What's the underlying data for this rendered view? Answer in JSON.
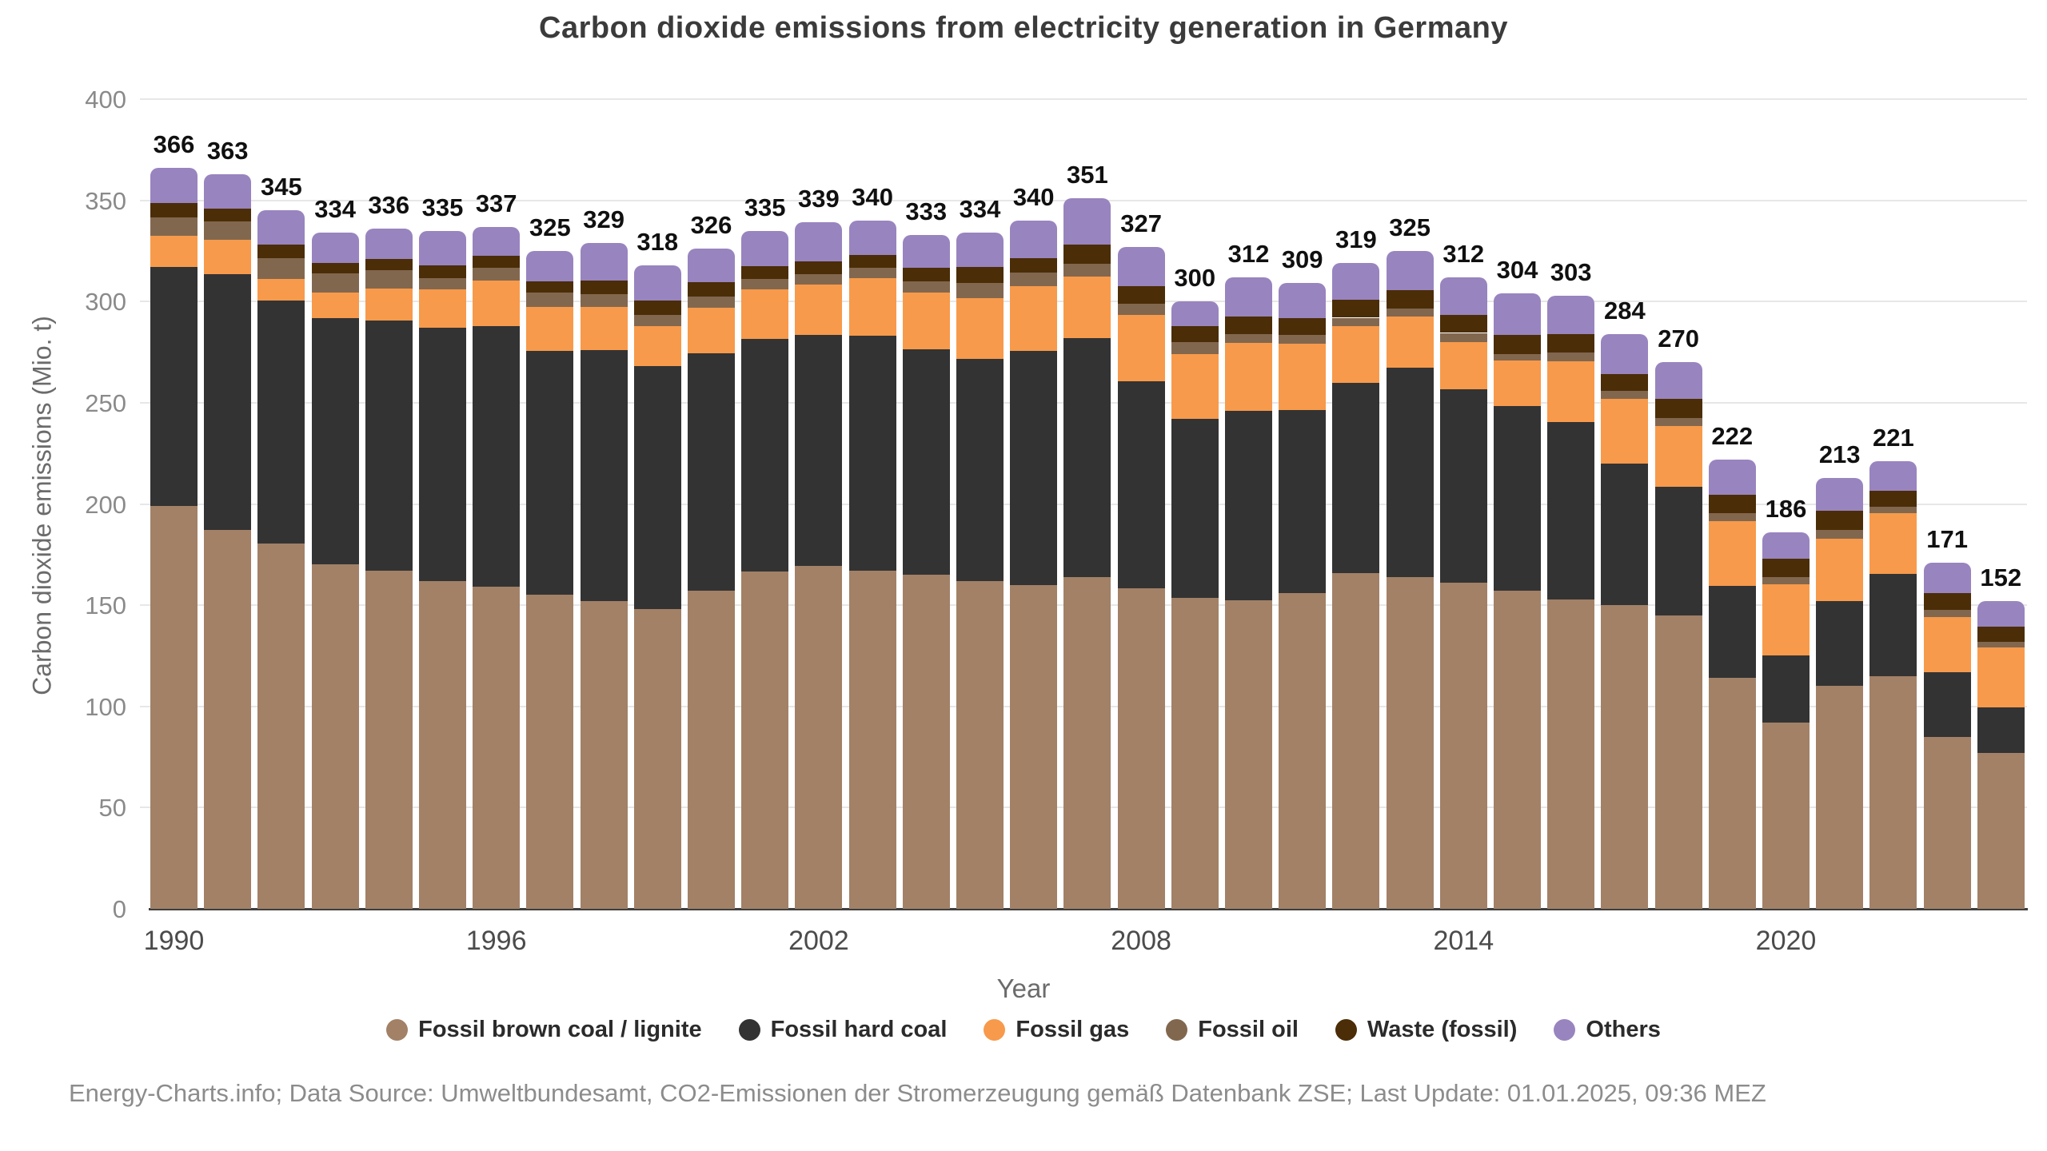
{
  "title": "Carbon dioxide emissions from electricity generation in Germany",
  "footer": {
    "text": "Energy-Charts.info; Data Source: Umweltbundesamt, CO2-Emissionen der Stromerzeugung gemäß Datenbank ZSE; Last Update: 01.01.2025, 09:36 MEZ"
  },
  "chart_data": {
    "type": "bar",
    "stacked": true,
    "title": "Carbon dioxide emissions from electricity generation in Germany",
    "xlabel": "Year",
    "ylabel": "Carbon dioxide emissions (Mio. t)",
    "unit": "Mio. t",
    "ylim": [
      0,
      400
    ],
    "y_ticks": [
      0,
      50,
      100,
      150,
      200,
      250,
      300,
      350,
      400
    ],
    "x_ticks": [
      1990,
      1996,
      2002,
      2008,
      2014,
      2020
    ],
    "grid": "horizontal",
    "legend_position": "bottom",
    "categories": [
      1990,
      1991,
      1992,
      1993,
      1994,
      1995,
      1996,
      1997,
      1998,
      1999,
      2000,
      2001,
      2002,
      2003,
      2004,
      2005,
      2006,
      2007,
      2008,
      2009,
      2010,
      2011,
      2012,
      2013,
      2014,
      2015,
      2016,
      2017,
      2018,
      2019,
      2020,
      2021,
      2022,
      2023,
      2024
    ],
    "totals": [
      366,
      363,
      345,
      334,
      336,
      335,
      337,
      325,
      329,
      318,
      326,
      335,
      339,
      340,
      333,
      334,
      340,
      351,
      327,
      300,
      312,
      309,
      319,
      325,
      312,
      304,
      303,
      284,
      270,
      222,
      186,
      213,
      221,
      171,
      152
    ],
    "series": [
      {
        "name": "Fossil brown coal / lignite",
        "color": "#A28167",
        "values": [
          199,
          187,
          180.5,
          170,
          167,
          162,
          159,
          155,
          152,
          148,
          157,
          166.5,
          169.5,
          167,
          165,
          162,
          160,
          164,
          158.5,
          153.5,
          152.5,
          156,
          166,
          164,
          161,
          157,
          153,
          150,
          145,
          114,
          92,
          110,
          115,
          85,
          77
        ]
      },
      {
        "name": "Fossil hard coal",
        "color": "#333333",
        "values": [
          118,
          126.5,
          120,
          122,
          123.5,
          125,
          129,
          120.5,
          124,
          120,
          117.5,
          115,
          114,
          116,
          111.5,
          109.5,
          115.5,
          118,
          102,
          88.5,
          93.5,
          90.5,
          94,
          103.5,
          95.5,
          91.5,
          87.5,
          70,
          63.5,
          45.5,
          33,
          42,
          50.5,
          32,
          22.5
        ]
      },
      {
        "name": "Fossil gas",
        "color": "#F79A4B",
        "values": [
          15.5,
          17,
          10.5,
          12.5,
          16,
          19,
          22.5,
          22,
          21.5,
          20,
          22.5,
          24.5,
          25,
          28.5,
          28,
          30,
          32,
          30.5,
          33,
          32,
          33.5,
          32.5,
          28,
          25,
          23.5,
          22.5,
          30,
          32,
          30,
          32,
          35.5,
          31,
          30,
          27,
          29.5
        ]
      },
      {
        "name": "Fossil oil",
        "color": "#82674F",
        "values": [
          9,
          9,
          10.5,
          9.5,
          9,
          5.5,
          6,
          7,
          6,
          5.5,
          5.5,
          5,
          5,
          5,
          5.5,
          7.5,
          7,
          6,
          5.5,
          6,
          4.5,
          4.5,
          4,
          4,
          4.5,
          3,
          4.5,
          4,
          4,
          4,
          3.5,
          4,
          3,
          3.5,
          3
        ]
      },
      {
        "name": "Waste (fossil)",
        "color": "#4B2D07",
        "values": [
          7,
          6.5,
          6.5,
          5,
          5.5,
          6.5,
          6,
          5.5,
          7,
          7,
          7,
          6.5,
          6.5,
          6.5,
          6.5,
          8,
          7,
          9.5,
          8.5,
          8,
          8.5,
          8.5,
          9,
          9,
          9,
          9.5,
          9,
          8,
          9.5,
          9,
          9,
          9.5,
          8,
          8.5,
          7.5
        ]
      },
      {
        "name": "Others",
        "color": "#9884BF",
        "values": [
          17.5,
          17,
          17,
          15,
          15,
          17,
          14.5,
          15,
          18.5,
          17.5,
          16.5,
          17.5,
          19,
          17,
          16.5,
          17,
          18.5,
          23,
          19.5,
          12,
          19.5,
          17,
          18,
          19.5,
          18.5,
          20.5,
          19,
          20,
          18,
          17.5,
          13,
          16.5,
          14.5,
          15,
          12.5
        ]
      }
    ]
  }
}
